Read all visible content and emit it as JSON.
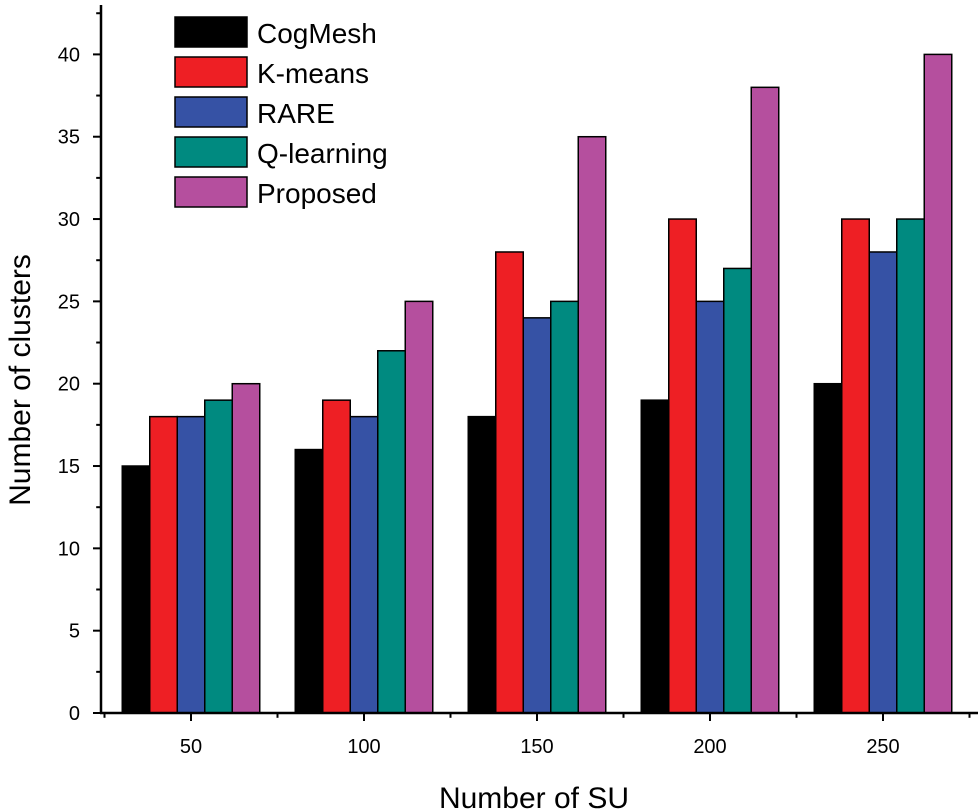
{
  "chart_data": {
    "type": "bar",
    "title": "",
    "xlabel": "Number of SU",
    "ylabel": "Number of clusters",
    "categories": [
      "50",
      "100",
      "150",
      "200",
      "250"
    ],
    "ylim": [
      0,
      43
    ],
    "yticks": [
      "0",
      "5",
      "10",
      "15",
      "20",
      "25",
      "30",
      "35",
      "40"
    ],
    "legend_position": "top-left",
    "series": [
      {
        "name": "CogMesh",
        "color": "#000000",
        "values": [
          15,
          16,
          18,
          19,
          20
        ]
      },
      {
        "name": "K-means",
        "color": "#ee1f24",
        "values": [
          18,
          19,
          28,
          30,
          30
        ]
      },
      {
        "name": "RARE",
        "color": "#3652a5",
        "values": [
          18,
          18,
          24,
          25,
          28
        ]
      },
      {
        "name": "Q-learning",
        "color": "#008a80",
        "values": [
          19,
          22,
          25,
          27,
          30
        ]
      },
      {
        "name": "Proposed",
        "color": "#b54f9e",
        "values": [
          20,
          25,
          35,
          38,
          40
        ]
      }
    ]
  }
}
